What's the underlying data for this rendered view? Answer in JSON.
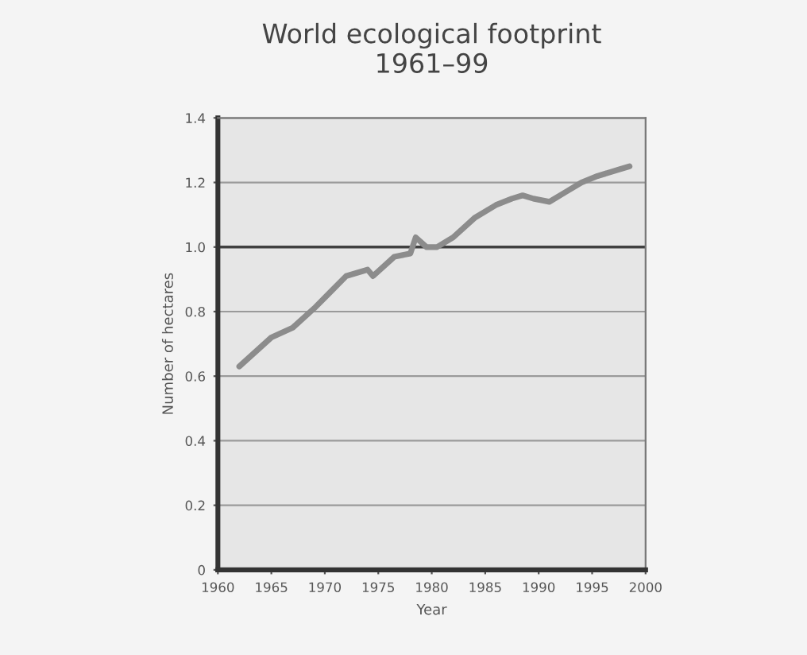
{
  "chart_data": {
    "type": "line",
    "title": "World ecological footprint\n1961–99",
    "xlabel": "Year",
    "ylabel": "Number of hectares",
    "x": [
      1962,
      1965,
      1967,
      1969,
      1970.5,
      1972,
      1974,
      1974.5,
      1976.5,
      1978,
      1978.5,
      1979.5,
      1980.5,
      1982,
      1984,
      1986,
      1987.5,
      1988.5,
      1989.5,
      1991,
      1992.5,
      1994,
      1995.5,
      1997.5,
      1998.5
    ],
    "series": [
      {
        "color": "#8c8c8c",
        "values": [
          0.63,
          0.72,
          0.75,
          0.81,
          0.86,
          0.91,
          0.93,
          0.91,
          0.97,
          0.98,
          1.03,
          1.0,
          1.0,
          1.03,
          1.09,
          1.13,
          1.15,
          1.16,
          1.15,
          1.14,
          1.17,
          1.2,
          1.22,
          1.24,
          1.25
        ]
      }
    ],
    "xlim": [
      1960,
      2000
    ],
    "xticks": [
      1960,
      1965,
      1970,
      1975,
      1980,
      1985,
      1990,
      1995,
      2000
    ],
    "ylim": [
      0,
      1.4
    ],
    "yticks": [
      0,
      0.2,
      0.4,
      0.6,
      0.8,
      {
        "value": 1,
        "label": "1.0"
      },
      1.2,
      1.4
    ],
    "ref_lines": [
      {
        "axis": "y",
        "value": 1.0,
        "color": "#404040"
      }
    ],
    "grid": "y",
    "marker": "none",
    "line_style": "solid"
  }
}
